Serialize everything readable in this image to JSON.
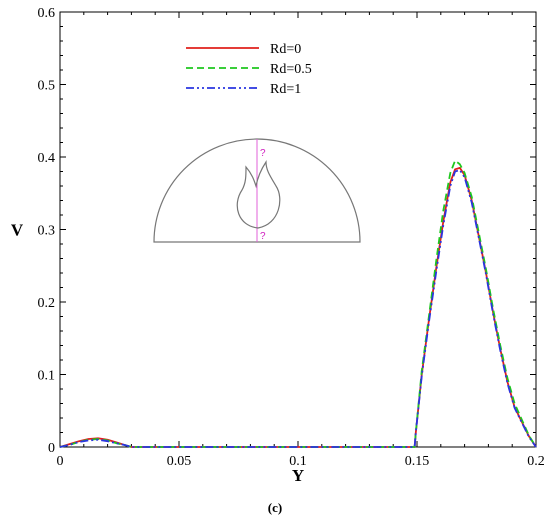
{
  "chart_data": {
    "type": "line",
    "title": "",
    "xlabel": "Y",
    "ylabel": "V",
    "xlim": [
      0,
      0.2
    ],
    "ylim": [
      0,
      0.6
    ],
    "xticks": [
      "0",
      "0.05",
      "0.1",
      "0.15",
      "0.2"
    ],
    "xtick_values": [
      0,
      0.05,
      0.1,
      0.15,
      0.2
    ],
    "yticks": [
      "0",
      "0.1",
      "0.2",
      "0.3",
      "0.4",
      "0.5",
      "0.6"
    ],
    "ytick_values": [
      0,
      0.1,
      0.2,
      0.3,
      0.4,
      0.5,
      0.6
    ],
    "grid": false,
    "legend_position": "top-center",
    "caption": "(c)",
    "inset": {
      "description_markers": [
        "?",
        "?"
      ]
    },
    "series": [
      {
        "name": "Rd=0",
        "color": "#e0201c",
        "dash": "solid",
        "x": [
          0,
          0.004,
          0.008,
          0.012,
          0.016,
          0.02,
          0.024,
          0.028,
          0.03,
          0.149,
          0.1495,
          0.152,
          0.155,
          0.158,
          0.161,
          0.164,
          0.166,
          0.168,
          0.17,
          0.173,
          0.176,
          0.179,
          0.182,
          0.185,
          0.188,
          0.191,
          0.194,
          0.197,
          0.2
        ],
        "y": [
          0,
          0.004,
          0.008,
          0.011,
          0.012,
          0.01,
          0.006,
          0.002,
          0,
          0,
          0.02,
          0.1,
          0.175,
          0.245,
          0.31,
          0.365,
          0.383,
          0.385,
          0.375,
          0.34,
          0.29,
          0.24,
          0.185,
          0.135,
          0.09,
          0.055,
          0.035,
          0.015,
          0
        ]
      },
      {
        "name": "Rd=0.5",
        "color": "#1ec81e",
        "dash": "dashed",
        "x": [
          0,
          0.004,
          0.008,
          0.012,
          0.016,
          0.02,
          0.024,
          0.028,
          0.03,
          0.149,
          0.1495,
          0.152,
          0.155,
          0.158,
          0.161,
          0.164,
          0.166,
          0.168,
          0.17,
          0.173,
          0.176,
          0.179,
          0.182,
          0.185,
          0.188,
          0.191,
          0.194,
          0.197,
          0.2
        ],
        "y": [
          0,
          0.003,
          0.007,
          0.01,
          0.011,
          0.009,
          0.005,
          0.002,
          0,
          0,
          0.02,
          0.105,
          0.18,
          0.255,
          0.325,
          0.378,
          0.395,
          0.39,
          0.378,
          0.345,
          0.295,
          0.245,
          0.19,
          0.14,
          0.095,
          0.06,
          0.038,
          0.016,
          0
        ]
      },
      {
        "name": "Rd=1",
        "color": "#2a35e0",
        "dash": "dashdotdot",
        "x": [
          0,
          0.004,
          0.008,
          0.012,
          0.016,
          0.02,
          0.024,
          0.028,
          0.03,
          0.149,
          0.1495,
          0.152,
          0.155,
          0.158,
          0.161,
          0.164,
          0.166,
          0.168,
          0.17,
          0.173,
          0.176,
          0.179,
          0.182,
          0.185,
          0.188,
          0.191,
          0.194,
          0.197,
          0.2
        ],
        "y": [
          0,
          0.003,
          0.007,
          0.009,
          0.01,
          0.008,
          0.005,
          0.002,
          0,
          0,
          0.02,
          0.098,
          0.172,
          0.24,
          0.305,
          0.36,
          0.38,
          0.382,
          0.372,
          0.337,
          0.288,
          0.238,
          0.183,
          0.133,
          0.088,
          0.054,
          0.034,
          0.014,
          0
        ]
      }
    ]
  }
}
